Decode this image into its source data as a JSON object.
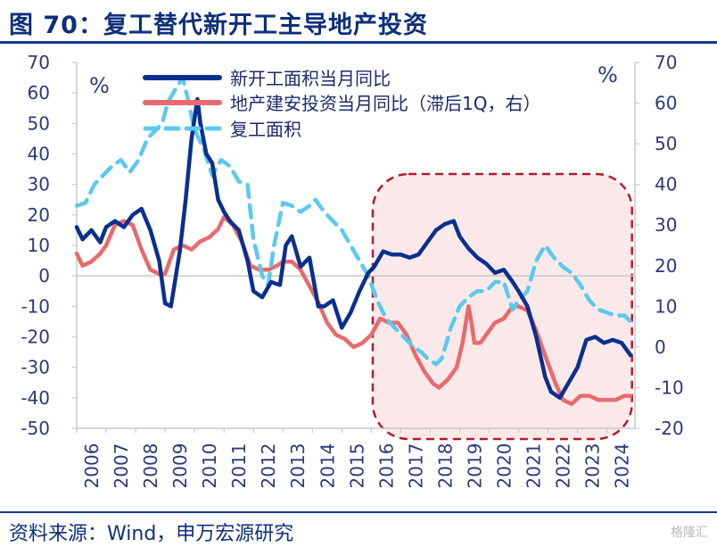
{
  "figure": {
    "title": "图 70：复工替代新开工主导地产投资",
    "source": "资料来源：Wind，申万宏源研究",
    "watermark": "格隆汇"
  },
  "chart_data": {
    "type": "line",
    "unit_left": "%",
    "unit_right": "%",
    "y_left": {
      "min": -50,
      "max": 70,
      "ticks": [
        70,
        60,
        50,
        40,
        30,
        20,
        10,
        0,
        -10,
        -20,
        -30,
        -40,
        -50
      ]
    },
    "y_right": {
      "min": -20,
      "max": 70,
      "ticks": [
        70,
        60,
        50,
        40,
        30,
        20,
        10,
        0,
        -10,
        -20
      ]
    },
    "x_ticks": [
      "2006",
      "2007",
      "2008",
      "2009",
      "2010",
      "2011",
      "2012",
      "2013",
      "2014",
      "2015",
      "2016",
      "2017",
      "2018",
      "2019",
      "2020",
      "2021",
      "2022",
      "2023",
      "2024"
    ],
    "x_range": [
      2006.0,
      2024.95
    ],
    "highlight": {
      "x_start": 2016.05,
      "x_end": 2024.85
    },
    "series": [
      {
        "name": "新开工面积当月同比",
        "axis": "left",
        "color": "#0a2f8f",
        "style": "solid",
        "x": [
          2006.0,
          2006.2,
          2006.5,
          2006.8,
          2007.0,
          2007.3,
          2007.6,
          2007.9,
          2008.2,
          2008.5,
          2008.8,
          2009.0,
          2009.2,
          2009.5,
          2009.7,
          2009.9,
          2010.1,
          2010.2,
          2010.4,
          2010.6,
          2010.8,
          2011.0,
          2011.2,
          2011.5,
          2011.8,
          2012.0,
          2012.3,
          2012.6,
          2012.9,
          2013.1,
          2013.3,
          2013.6,
          2013.9,
          2014.2,
          2014.4,
          2014.7,
          2015.0,
          2015.3,
          2015.6,
          2015.9,
          2016.1,
          2016.4,
          2016.7,
          2017.0,
          2017.3,
          2017.6,
          2017.9,
          2018.2,
          2018.5,
          2018.8,
          2019.0,
          2019.3,
          2019.6,
          2019.9,
          2020.2,
          2020.5,
          2020.8,
          2021.0,
          2021.3,
          2021.6,
          2021.9,
          2022.1,
          2022.4,
          2022.7,
          2023.0,
          2023.3,
          2023.6,
          2023.9,
          2024.2,
          2024.5,
          2024.8
        ],
        "y": [
          16,
          12,
          15,
          11,
          16,
          18,
          16,
          20,
          22,
          15,
          5,
          -9,
          -10,
          8,
          25,
          45,
          58,
          50,
          40,
          37,
          25,
          21,
          18,
          15,
          5,
          -5,
          -7,
          -2,
          -3,
          10,
          13,
          3,
          6,
          -10,
          -10,
          -8,
          -17,
          -12,
          -5,
          1,
          3,
          8,
          7,
          7,
          6,
          7,
          11,
          15,
          17,
          18,
          13,
          9,
          6,
          4,
          1,
          2,
          -2,
          -5,
          -10,
          -20,
          -33,
          -38,
          -40,
          -35,
          -30,
          -21,
          -20,
          -22,
          -21,
          -22,
          -26
        ]
      },
      {
        "name": "地产建安投资当月同比（滞后1Q，右）",
        "axis": "right",
        "color": "#e86a6d",
        "style": "solid",
        "x": [
          2006.0,
          2006.2,
          2006.5,
          2006.8,
          2007.0,
          2007.3,
          2007.6,
          2007.9,
          2008.2,
          2008.5,
          2008.8,
          2009.0,
          2009.3,
          2009.6,
          2009.9,
          2010.2,
          2010.5,
          2010.8,
          2011.0,
          2011.3,
          2011.6,
          2011.9,
          2012.2,
          2012.5,
          2012.8,
          2013.0,
          2013.3,
          2013.6,
          2013.9,
          2014.2,
          2014.5,
          2014.8,
          2015.1,
          2015.4,
          2015.7,
          2016.0,
          2016.3,
          2016.6,
          2016.9,
          2017.2,
          2017.5,
          2017.8,
          2018.1,
          2018.3,
          2018.6,
          2018.9,
          2019.1,
          2019.3,
          2019.4,
          2019.5,
          2019.7,
          2019.9,
          2020.2,
          2020.5,
          2020.8,
          2021.0,
          2021.3,
          2021.6,
          2021.9,
          2022.2,
          2022.5,
          2022.8,
          2023.1,
          2023.4,
          2023.7,
          2024.0,
          2024.3,
          2024.6,
          2024.8
        ],
        "y": [
          23,
          20,
          21,
          23,
          25,
          30,
          31,
          30,
          24,
          19,
          18,
          18,
          24,
          25,
          24,
          26,
          27,
          29,
          32,
          30,
          26,
          20,
          19,
          19,
          20,
          21,
          21,
          19,
          15,
          11,
          6,
          3,
          2,
          0,
          1,
          3,
          7,
          6,
          6,
          3,
          -2,
          -6,
          -9,
          -10,
          -8,
          -5,
          1,
          10,
          6,
          1,
          1,
          3,
          6,
          7,
          10,
          10,
          9,
          4,
          -2,
          -8,
          -13,
          -14,
          -12,
          -12,
          -13,
          -13,
          -13,
          -12,
          -12
        ]
      },
      {
        "name": "复工面积",
        "axis": "left",
        "color": "#5bc9f0",
        "style": "dashed",
        "x": [
          2006.0,
          2006.3,
          2006.6,
          2006.9,
          2007.2,
          2007.5,
          2007.8,
          2008.1,
          2008.4,
          2008.7,
          2008.9,
          2009.1,
          2009.4,
          2009.6,
          2009.8,
          2010.0,
          2010.3,
          2010.6,
          2010.9,
          2011.2,
          2011.5,
          2011.8,
          2012.0,
          2012.3,
          2012.5,
          2012.7,
          2013.0,
          2013.3,
          2013.6,
          2013.9,
          2014.1,
          2014.4,
          2014.7,
          2015.0,
          2015.3,
          2015.6,
          2015.9,
          2016.2,
          2016.5,
          2016.8,
          2017.1,
          2017.4,
          2017.7,
          2017.9,
          2018.2,
          2018.4,
          2018.7,
          2019.0,
          2019.3,
          2019.6,
          2019.9,
          2020.2,
          2020.5,
          2020.8,
          2021.0,
          2021.3,
          2021.6,
          2021.9,
          2022.2,
          2022.5,
          2022.8,
          2023.1,
          2023.4,
          2023.7,
          2024.0,
          2024.3,
          2024.6,
          2024.9
        ],
        "y": [
          23,
          24,
          30,
          33,
          36,
          38,
          34,
          38,
          45,
          48,
          50,
          57,
          62,
          65,
          57,
          48,
          42,
          33,
          38,
          36,
          31,
          30,
          12,
          0,
          -3,
          10,
          24,
          23,
          21,
          23,
          25,
          21,
          18,
          15,
          10,
          5,
          0,
          -8,
          -14,
          -17,
          -20,
          -23,
          -25,
          -27,
          -29,
          -27,
          -17,
          -10,
          -7,
          -5,
          -5,
          -2,
          -2,
          -11,
          -8,
          -5,
          5,
          10,
          6,
          3,
          1,
          -3,
          -8,
          -11,
          -12,
          -13,
          -13,
          -16
        ]
      }
    ]
  }
}
